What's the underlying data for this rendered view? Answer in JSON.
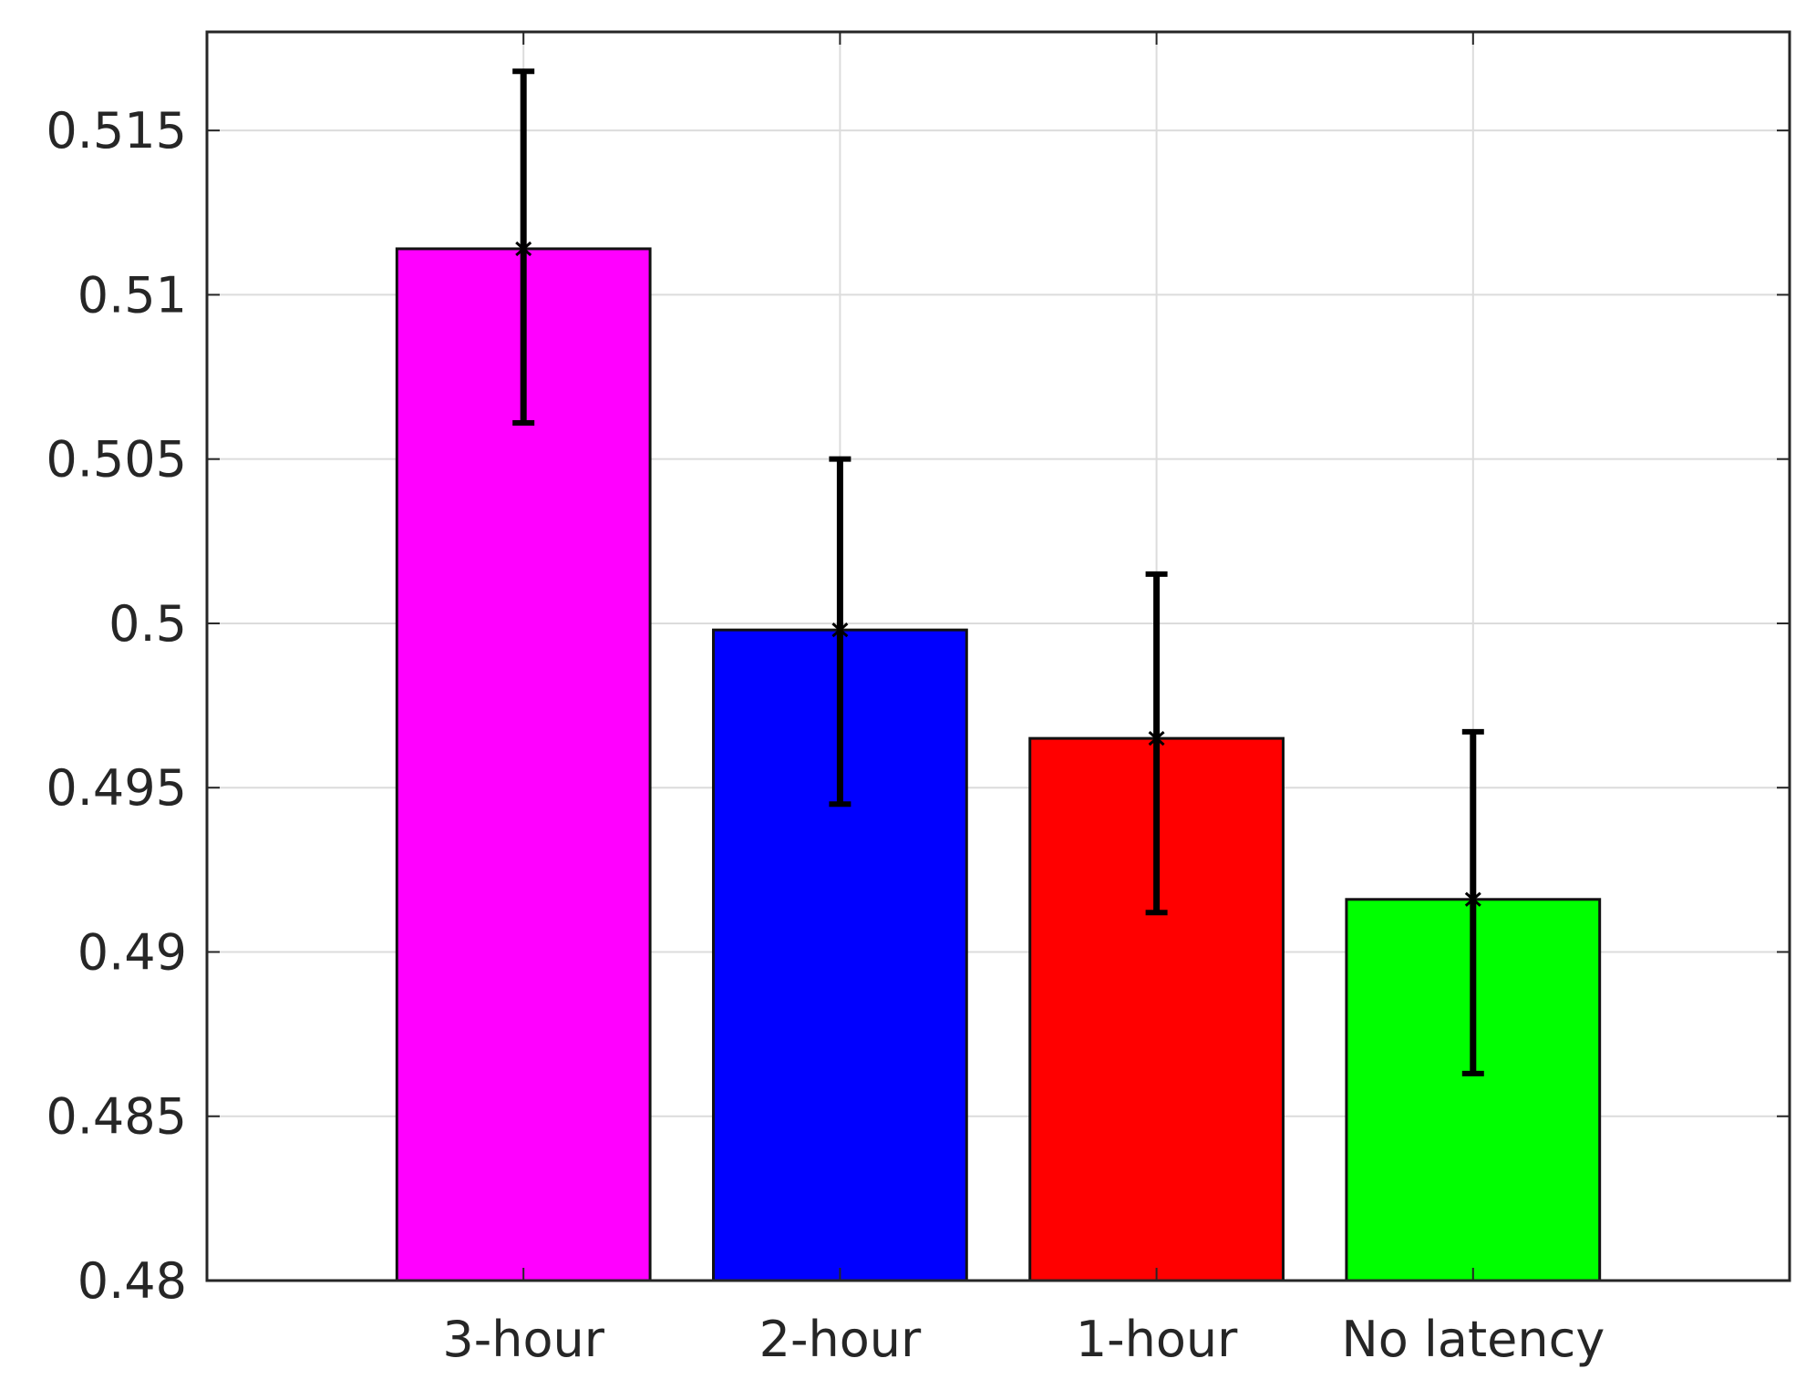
{
  "chart_data": {
    "type": "bar",
    "title": "",
    "xlabel": "",
    "ylabel": "",
    "categories": [
      "3-hour",
      "2-hour",
      "1-hour",
      "No latency"
    ],
    "values": [
      0.5114,
      0.4998,
      0.4965,
      0.4916
    ],
    "errors": [
      {
        "low": 0.5061,
        "high": 0.5168
      },
      {
        "low": 0.4945,
        "high": 0.505
      },
      {
        "low": 0.4912,
        "high": 0.5015
      },
      {
        "low": 0.4863,
        "high": 0.4967
      }
    ],
    "colors": [
      "#ff00ff",
      "#0000ff",
      "#ff0000",
      "#00ff00"
    ],
    "ylim": [
      0.48,
      0.518
    ],
    "yticks": [
      0.48,
      0.485,
      0.49,
      0.495,
      0.5,
      0.505,
      0.51,
      0.515
    ],
    "ytick_labels": [
      "0.48",
      "0.485",
      "0.49",
      "0.495",
      "0.5",
      "0.505",
      "0.51",
      "0.515"
    ],
    "xlim": [
      0,
      5
    ],
    "x_positions": [
      1,
      2,
      3,
      4
    ],
    "bar_width": 0.8,
    "grid": true,
    "legend": "none"
  }
}
